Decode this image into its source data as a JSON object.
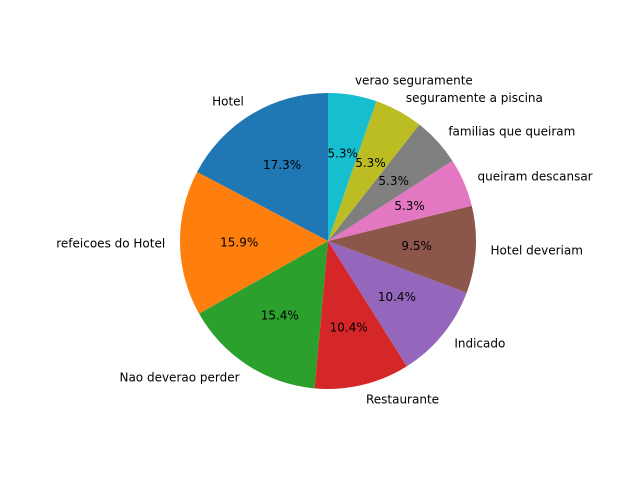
{
  "chart_data": {
    "type": "pie",
    "start_angle_deg": 90,
    "direction": "counterclockwise",
    "slices": [
      {
        "label": "Hotel",
        "value": 17.3,
        "pct_label": "17.3%",
        "color": "#1f77b4"
      },
      {
        "label": "refeicoes do Hotel",
        "value": 15.9,
        "pct_label": "15.9%",
        "color": "#ff7f0e"
      },
      {
        "label": "Nao deverao perder",
        "value": 15.4,
        "pct_label": "15.4%",
        "color": "#2ca02c"
      },
      {
        "label": "Restaurante",
        "value": 10.4,
        "pct_label": "10.4%",
        "color": "#d62728"
      },
      {
        "label": "Indicado",
        "value": 10.4,
        "pct_label": "10.4%",
        "color": "#9467bd"
      },
      {
        "label": "Hotel deveriam",
        "value": 9.5,
        "pct_label": "9.5%",
        "color": "#8c564b"
      },
      {
        "label": "queiram descansar",
        "value": 5.3,
        "pct_label": "5.3%",
        "color": "#e377c2"
      },
      {
        "label": "familias que queiram",
        "value": 5.3,
        "pct_label": "5.3%",
        "color": "#7f7f7f"
      },
      {
        "label": "seguramente a piscina",
        "value": 5.3,
        "pct_label": "5.3%",
        "color": "#bcbd22"
      },
      {
        "label": "verao seguramente",
        "value": 5.3,
        "pct_label": "5.3%",
        "color": "#17becf"
      }
    ]
  }
}
